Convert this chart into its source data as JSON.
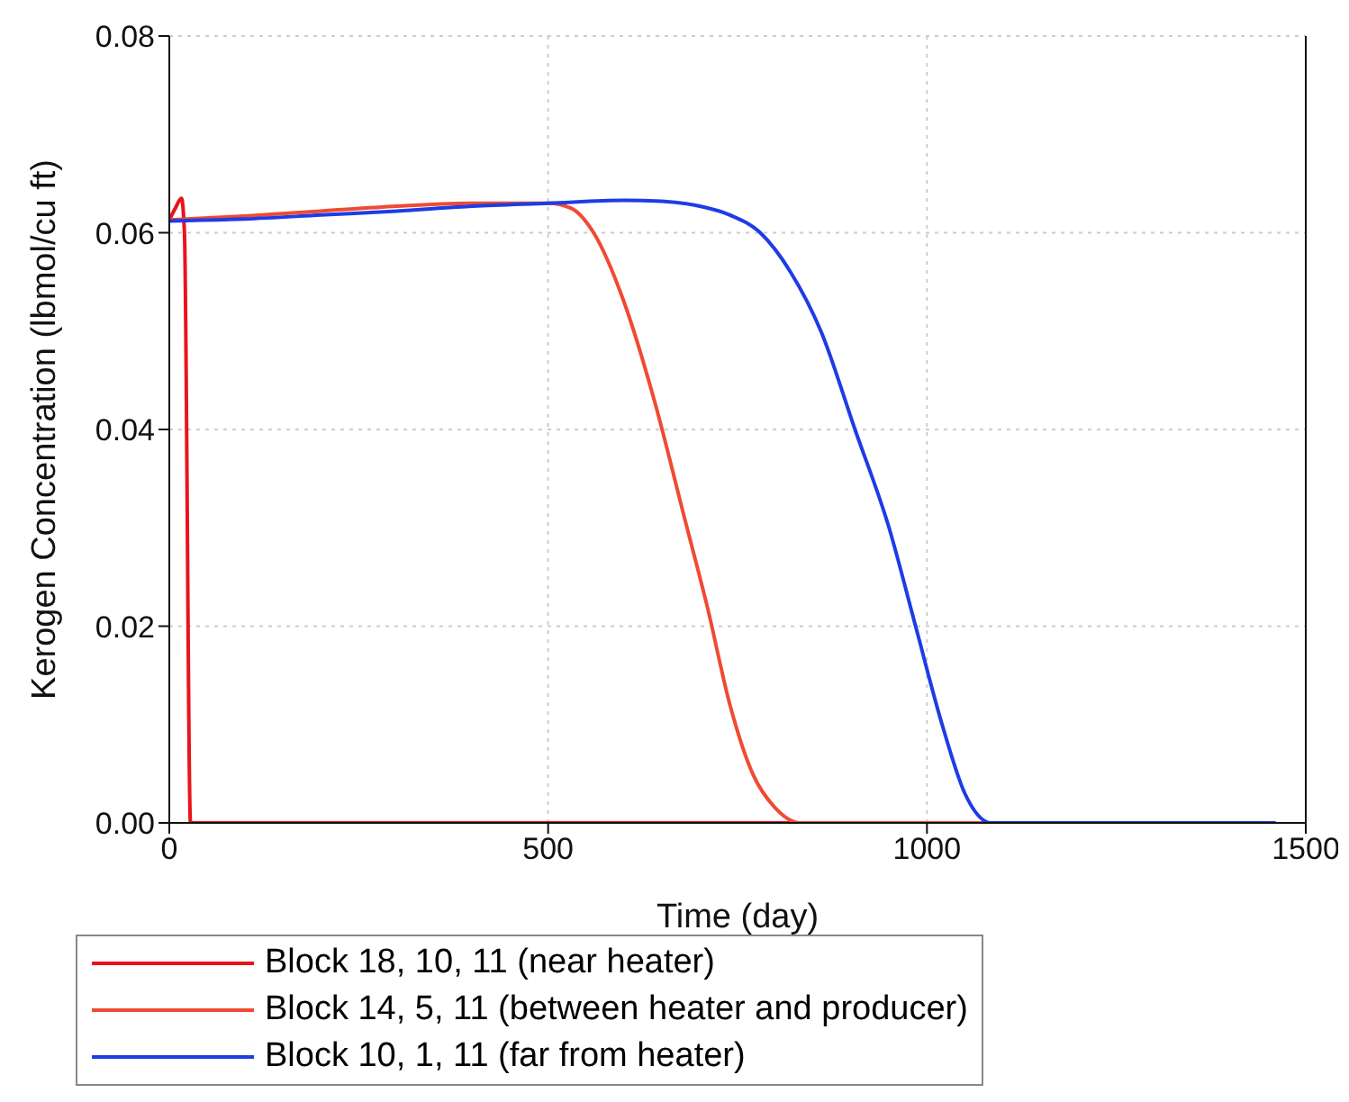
{
  "chart_data": {
    "type": "line",
    "xlabel": "Time (day)",
    "ylabel": "Kerogen Concentration (lbmol/cu ft)",
    "xlim": [
      0,
      1500
    ],
    "xticks": [
      0,
      500,
      1000,
      1500
    ],
    "ylim": [
      0,
      0.08
    ],
    "yticks": [
      {
        "value": 0,
        "label": "0.00"
      },
      {
        "value": 0.02,
        "label": "0.02"
      },
      {
        "value": 0.04,
        "label": "0.04"
      },
      {
        "value": 0.06,
        "label": "0.06"
      },
      {
        "value": 0.08,
        "label": "0.08"
      }
    ],
    "grid": true,
    "legend": "bottom",
    "marker": "none",
    "line_style": "solid",
    "series": [
      {
        "name": "Block 18, 10, 11 (near heater)",
        "color": "#e8141c",
        "x": [
          0,
          8,
          16,
          20,
          28,
          100,
          500,
          1000,
          1460
        ],
        "values": [
          0.0613,
          0.0625,
          0.0635,
          0.06,
          0,
          0,
          0,
          0,
          0
        ]
      },
      {
        "name": "Block 14, 5, 11 (between heater and producer)",
        "color": "#f04a32",
        "x": [
          0,
          100,
          200,
          300,
          400,
          500,
          530,
          560,
          600,
          640,
          680,
          710,
          740,
          770,
          800,
          833,
          900,
          1000,
          1460
        ],
        "values": [
          0.0613,
          0.0617,
          0.0622,
          0.0627,
          0.063,
          0.063,
          0.0625,
          0.06,
          0.053,
          0.043,
          0.031,
          0.022,
          0.012,
          0.005,
          0.0015,
          0,
          0,
          0,
          0
        ]
      },
      {
        "name": "Block 10, 1, 11 (far from heater)",
        "color": "#1e3ce6",
        "x": [
          0,
          100,
          200,
          300,
          400,
          500,
          600,
          650,
          700,
          740,
          780,
          820,
          860,
          905,
          950,
          985,
          1020,
          1050,
          1085,
          1200,
          1460
        ],
        "values": [
          0.0612,
          0.0614,
          0.0618,
          0.0622,
          0.0627,
          0.063,
          0.0633,
          0.0632,
          0.0627,
          0.0618,
          0.06,
          0.056,
          0.05,
          0.04,
          0.03,
          0.02,
          0.01,
          0.003,
          0,
          0,
          0
        ]
      }
    ]
  }
}
